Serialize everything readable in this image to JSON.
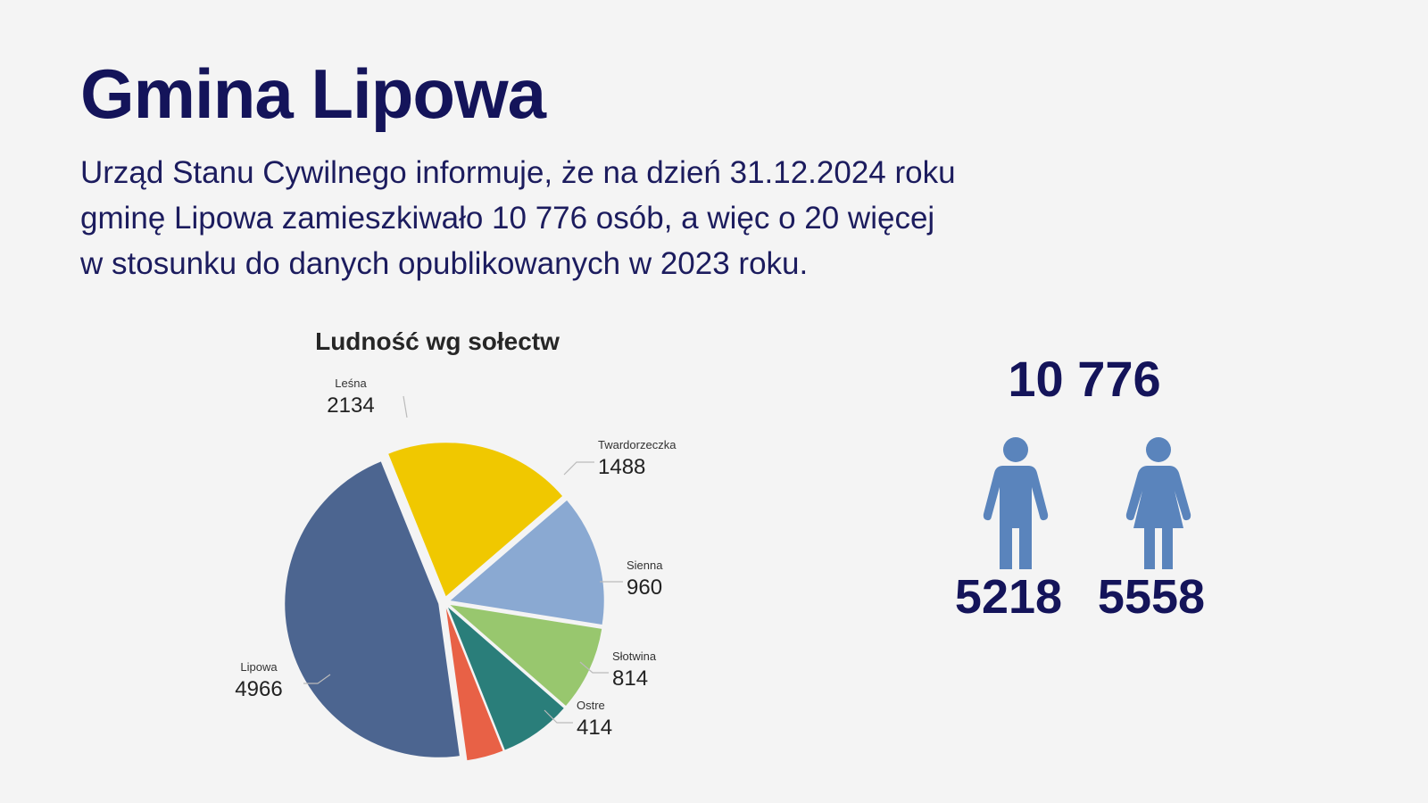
{
  "header": {
    "title": "Gmina Lipowa",
    "intro_lines": [
      "Urząd Stanu Cywilnego informuje, że na dzień 31.12.2024 roku",
      "gminę Lipowa zamieszkiwało 10 776 osób, a więc o 20 więcej",
      "w stosunku do danych opublikowanych w 2023 roku."
    ]
  },
  "summary": {
    "total": "10 776",
    "male": "5218",
    "female": "5558",
    "male_icon": "male-person-icon",
    "female_icon": "female-person-icon",
    "icon_color": "#5a84bc"
  },
  "colors": {
    "title": "#14145a",
    "background": "#f4f4f4"
  },
  "chart_data": {
    "type": "pie",
    "title": "Ludność wg sołectw",
    "slices": [
      {
        "label": "Leśna",
        "value": 2134,
        "color": "#f0c800"
      },
      {
        "label": "Twardorzeczka",
        "value": 1488,
        "color": "#8aa9d2"
      },
      {
        "label": "Sienna",
        "value": 960,
        "color": "#98c76e"
      },
      {
        "label": "Słotwina",
        "value": 814,
        "color": "#2a7e7a"
      },
      {
        "label": "Ostre",
        "value": 414,
        "color": "#e86146"
      },
      {
        "label": "Lipowa",
        "value": 4966,
        "color": "#4c6590"
      }
    ]
  }
}
